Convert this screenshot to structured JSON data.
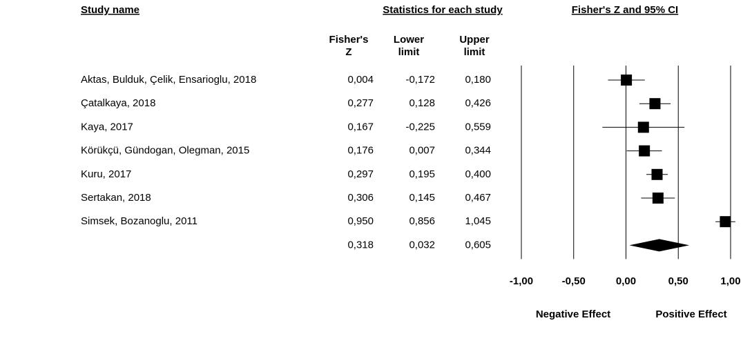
{
  "chart_data": {
    "type": "forest",
    "table_title": "Study name",
    "stats_title": "Statistics for each study",
    "title": "Fisher's Z and 95% CI",
    "columns": [
      [
        "Fisher's",
        "Z"
      ],
      [
        "Lower",
        "limit"
      ],
      [
        "Upper",
        "limit"
      ]
    ],
    "studies": [
      "Aktas, Bulduk, Çelik, Ensarioglu, 2018",
      "Çatalkaya, 2018",
      "Kaya, 2017",
      "Körükçü, Gündogan, Olegman, 2015",
      "Kuru, 2017",
      "Sertakan, 2018",
      "Simsek, Bozanoglu, 2011"
    ],
    "effect": [
      0.004,
      0.277,
      0.167,
      0.176,
      0.297,
      0.306,
      0.95
    ],
    "effect_labels": [
      "0,004",
      "0,277",
      "0,167",
      "0,176",
      "0,297",
      "0,306",
      "0,950"
    ],
    "lower": [
      -0.172,
      0.128,
      -0.225,
      0.007,
      0.195,
      0.145,
      0.856
    ],
    "lower_labels": [
      "-0,172",
      "0,128",
      "-0,225",
      "0,007",
      "0,195",
      "0,145",
      "0,856"
    ],
    "upper": [
      0.18,
      0.426,
      0.559,
      0.344,
      0.4,
      0.467,
      1.045
    ],
    "upper_labels": [
      "0,180",
      "0,426",
      "0,559",
      "0,344",
      "0,400",
      "0,467",
      "1,045"
    ],
    "summary": {
      "effect": 0.318,
      "effect_label": "0,318",
      "lower": 0.032,
      "lower_label": "0,032",
      "upper": 0.605,
      "upper_label": "0,605"
    },
    "xlim": [
      -1,
      1
    ],
    "xticks": [
      {
        "value": -1,
        "label": "-1,00"
      },
      {
        "value": -0.5,
        "label": "-0,50"
      },
      {
        "value": 0,
        "label": "0,00"
      },
      {
        "value": 0.5,
        "label": "0,50"
      },
      {
        "value": 1,
        "label": "1,00"
      }
    ],
    "annotations": [
      "Negative Effect",
      "Positive Effect"
    ],
    "color": "#000000"
  }
}
